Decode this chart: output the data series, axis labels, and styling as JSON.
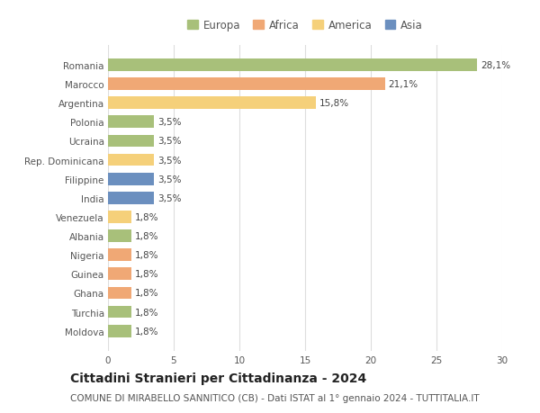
{
  "categories": [
    "Romania",
    "Marocco",
    "Argentina",
    "Polonia",
    "Ucraina",
    "Rep. Dominicana",
    "Filippine",
    "India",
    "Venezuela",
    "Albania",
    "Nigeria",
    "Guinea",
    "Ghana",
    "Turchia",
    "Moldova"
  ],
  "values": [
    28.1,
    21.1,
    15.8,
    3.5,
    3.5,
    3.5,
    3.5,
    3.5,
    1.8,
    1.8,
    1.8,
    1.8,
    1.8,
    1.8,
    1.8
  ],
  "labels": [
    "28,1%",
    "21,1%",
    "15,8%",
    "3,5%",
    "3,5%",
    "3,5%",
    "3,5%",
    "3,5%",
    "1,8%",
    "1,8%",
    "1,8%",
    "1,8%",
    "1,8%",
    "1,8%",
    "1,8%"
  ],
  "continents": [
    "Europa",
    "Africa",
    "America",
    "Europa",
    "Europa",
    "America",
    "Asia",
    "Asia",
    "America",
    "Europa",
    "Africa",
    "Africa",
    "Africa",
    "Europa",
    "Europa"
  ],
  "continent_colors": {
    "Europa": "#a8c07a",
    "Africa": "#f0a875",
    "America": "#f5d07a",
    "Asia": "#6b8fbf"
  },
  "legend_order": [
    "Europa",
    "Africa",
    "America",
    "Asia"
  ],
  "title": "Cittadini Stranieri per Cittadinanza - 2024",
  "subtitle": "COMUNE DI MIRABELLO SANNITICO (CB) - Dati ISTAT al 1° gennaio 2024 - TUTTITALIA.IT",
  "xlim": [
    0,
    30
  ],
  "xticks": [
    0,
    5,
    10,
    15,
    20,
    25,
    30
  ],
  "background_color": "#ffffff",
  "grid_color": "#dddddd",
  "bar_height": 0.65,
  "title_fontsize": 10,
  "subtitle_fontsize": 7.5,
  "label_fontsize": 7.5,
  "tick_fontsize": 7.5,
  "legend_fontsize": 8.5
}
